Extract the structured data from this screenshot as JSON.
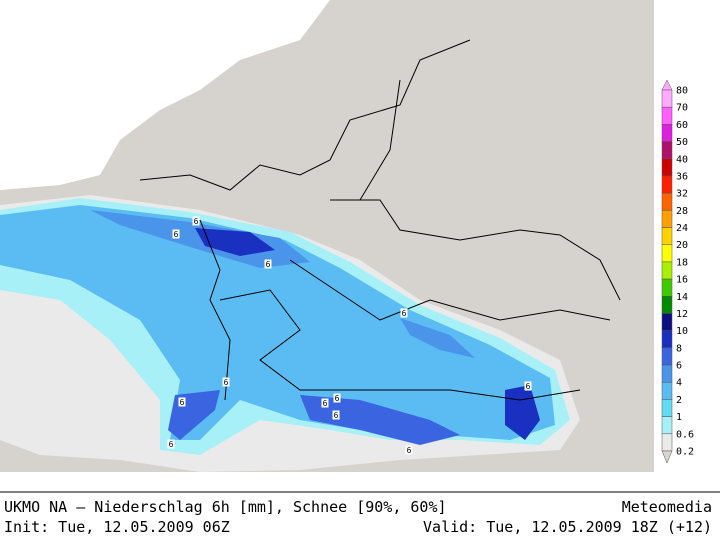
{
  "map": {
    "footer": {
      "title": "UKMO NA – Niederschlag 6h [mm], Schnee [90%, 60%]",
      "brand": "Meteomedia",
      "init": "Init: Tue, 12.05.2009 06Z",
      "valid": "Valid: Tue, 12.05.2009 18Z (+12)"
    },
    "legend": {
      "items": [
        {
          "label": "80",
          "color": "#ffaaff"
        },
        {
          "label": "70",
          "color": "#ff60ff"
        },
        {
          "label": "60",
          "color": "#e020e0"
        },
        {
          "label": "50",
          "color": "#b0106a"
        },
        {
          "label": "40",
          "color": "#cc0000"
        },
        {
          "label": "36",
          "color": "#ff2000"
        },
        {
          "label": "32",
          "color": "#ff6400"
        },
        {
          "label": "28",
          "color": "#ffa000"
        },
        {
          "label": "24",
          "color": "#ffd200"
        },
        {
          "label": "20",
          "color": "#ffff00"
        },
        {
          "label": "18",
          "color": "#a8f000"
        },
        {
          "label": "16",
          "color": "#40c800"
        },
        {
          "label": "14",
          "color": "#008a00"
        },
        {
          "label": "12",
          "color": "#0a1080"
        },
        {
          "label": "10",
          "color": "#1a30c0"
        },
        {
          "label": "8",
          "color": "#3a64e0"
        },
        {
          "label": "6",
          "color": "#4a94ea"
        },
        {
          "label": "4",
          "color": "#5abcf2"
        },
        {
          "label": "2",
          "color": "#62dcf2"
        },
        {
          "label": "1",
          "color": "#a8f0f8"
        },
        {
          "label": "0.6",
          "color": "#eaeaea"
        },
        {
          "label": "0.2",
          "color": "#d8d6d2"
        }
      ]
    },
    "contour_labels": [
      "6",
      "6",
      "6",
      "6",
      "6",
      "6",
      "6",
      "6",
      "6",
      "6",
      "6",
      "6"
    ]
  }
}
